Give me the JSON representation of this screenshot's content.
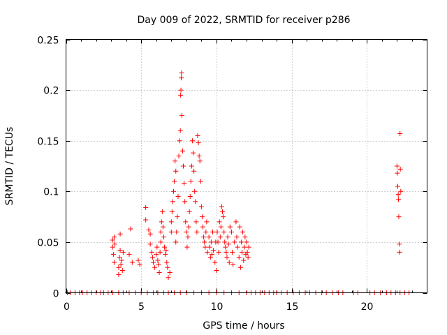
{
  "chart_data": {
    "type": "scatter",
    "title": "Day 009 of 2022, SRMTID for receiver p286",
    "xlabel": "GPS time / hours",
    "ylabel": "SRMTID / TECUs",
    "xlim": [
      0,
      24
    ],
    "ylim": [
      0,
      0.25
    ],
    "x_ticks": [
      0,
      5,
      10,
      15,
      20
    ],
    "x_tick_labels": [
      "0",
      "5",
      "10",
      "15",
      "20"
    ],
    "y_ticks": [
      0,
      0.05,
      0.1,
      0.15,
      0.2,
      0.25
    ],
    "y_tick_labels": [
      "0",
      "0.05",
      "0.1",
      "0.15",
      "0.2",
      "0.25"
    ],
    "grid": true,
    "marker": "+",
    "series": [
      {
        "name": "SRMTID",
        "color": "#ff0000",
        "points": [
          [
            0.1,
            0
          ],
          [
            0.3,
            0
          ],
          [
            0.6,
            0
          ],
          [
            0.9,
            0
          ],
          [
            1.1,
            0
          ],
          [
            1.4,
            0
          ],
          [
            1.7,
            0
          ],
          [
            2.0,
            0
          ],
          [
            2.3,
            0
          ],
          [
            2.5,
            0
          ],
          [
            2.8,
            0
          ],
          [
            3.1,
            0
          ],
          [
            3.5,
            0
          ],
          [
            3.8,
            0
          ],
          [
            4.2,
            0
          ],
          [
            4.6,
            0
          ],
          [
            5.0,
            0
          ],
          [
            5.4,
            0
          ],
          [
            5.8,
            0
          ],
          [
            6.1,
            0
          ],
          [
            6.5,
            0
          ],
          [
            6.8,
            0
          ],
          [
            7.2,
            0
          ],
          [
            7.6,
            0
          ],
          [
            8.0,
            0
          ],
          [
            8.5,
            0
          ],
          [
            9.0,
            0
          ],
          [
            9.5,
            0
          ],
          [
            10.0,
            0
          ],
          [
            10.5,
            0
          ],
          [
            11.0,
            0
          ],
          [
            11.5,
            0
          ],
          [
            12.0,
            0
          ],
          [
            12.3,
            0
          ],
          [
            12.6,
            0
          ],
          [
            12.9,
            0
          ],
          [
            13.2,
            0
          ],
          [
            13.5,
            0
          ],
          [
            13.8,
            0
          ],
          [
            14.0,
            0
          ],
          [
            14.3,
            0
          ],
          [
            14.7,
            0
          ],
          [
            15.1,
            0
          ],
          [
            15.5,
            0
          ],
          [
            15.9,
            0
          ],
          [
            16.2,
            0
          ],
          [
            16.6,
            0
          ],
          [
            17.0,
            0
          ],
          [
            17.3,
            0
          ],
          [
            17.7,
            0
          ],
          [
            18.1,
            0
          ],
          [
            18.4,
            0
          ],
          [
            19.1,
            0
          ],
          [
            19.4,
            0
          ],
          [
            20.2,
            0
          ],
          [
            20.5,
            0
          ],
          [
            20.9,
            0
          ],
          [
            21.3,
            0
          ],
          [
            21.6,
            0
          ],
          [
            21.9,
            0
          ],
          [
            22.2,
            0
          ],
          [
            22.5,
            0
          ],
          [
            22.8,
            0
          ],
          [
            3.1,
            0.052
          ],
          [
            3.1,
            0.045
          ],
          [
            3.15,
            0.038
          ],
          [
            3.2,
            0.055
          ],
          [
            3.2,
            0.03
          ],
          [
            3.25,
            0.048
          ],
          [
            3.5,
            0.025
          ],
          [
            3.5,
            0.018
          ],
          [
            3.55,
            0.035
          ],
          [
            3.6,
            0.042
          ],
          [
            3.6,
            0.058
          ],
          [
            3.65,
            0.028
          ],
          [
            3.7,
            0.032
          ],
          [
            3.75,
            0.022
          ],
          [
            3.8,
            0.04
          ],
          [
            4.2,
            0.038
          ],
          [
            4.3,
            0.063
          ],
          [
            4.4,
            0.03
          ],
          [
            4.8,
            0.032
          ],
          [
            4.9,
            0.028
          ],
          [
            5.3,
            0.072
          ],
          [
            5.3,
            0.084
          ],
          [
            5.5,
            0.062
          ],
          [
            5.6,
            0.058
          ],
          [
            5.6,
            0.048
          ],
          [
            5.7,
            0.04
          ],
          [
            5.75,
            0.035
          ],
          [
            5.8,
            0.03
          ],
          [
            5.9,
            0.025
          ],
          [
            6.0,
            0.038
          ],
          [
            6.05,
            0.045
          ],
          [
            6.1,
            0.032
          ],
          [
            6.15,
            0.028
          ],
          [
            6.2,
            0.02
          ],
          [
            6.25,
            0.04
          ],
          [
            6.3,
            0.05
          ],
          [
            6.3,
            0.06
          ],
          [
            6.35,
            0.07
          ],
          [
            6.4,
            0.08
          ],
          [
            6.45,
            0.065
          ],
          [
            6.5,
            0.055
          ],
          [
            6.55,
            0.045
          ],
          [
            6.6,
            0.038
          ],
          [
            6.65,
            0.042
          ],
          [
            6.7,
            0.03
          ],
          [
            6.75,
            0.025
          ],
          [
            6.8,
            0.015
          ],
          [
            6.9,
            0.02
          ],
          [
            7.0,
            0.06
          ],
          [
            7.0,
            0.07
          ],
          [
            7.05,
            0.08
          ],
          [
            7.1,
            0.09
          ],
          [
            7.15,
            0.1
          ],
          [
            7.2,
            0.11
          ],
          [
            7.25,
            0.13
          ],
          [
            7.3,
            0.12
          ],
          [
            7.3,
            0.05
          ],
          [
            7.35,
            0.06
          ],
          [
            7.4,
            0.075
          ],
          [
            7.45,
            0.095
          ],
          [
            7.5,
            0.135
          ],
          [
            7.55,
            0.15
          ],
          [
            7.6,
            0.16
          ],
          [
            7.62,
            0.195
          ],
          [
            7.64,
            0.2
          ],
          [
            7.66,
            0.212
          ],
          [
            7.68,
            0.217
          ],
          [
            7.7,
            0.175
          ],
          [
            7.75,
            0.14
          ],
          [
            7.8,
            0.125
          ],
          [
            7.85,
            0.108
          ],
          [
            7.9,
            0.09
          ],
          [
            7.95,
            0.07
          ],
          [
            8.0,
            0.06
          ],
          [
            8.05,
            0.045
          ],
          [
            8.1,
            0.055
          ],
          [
            8.15,
            0.065
          ],
          [
            8.2,
            0.08
          ],
          [
            8.25,
            0.095
          ],
          [
            8.3,
            0.11
          ],
          [
            8.35,
            0.125
          ],
          [
            8.4,
            0.15
          ],
          [
            8.45,
            0.138
          ],
          [
            8.5,
            0.12
          ],
          [
            8.55,
            0.1
          ],
          [
            8.6,
            0.09
          ],
          [
            8.65,
            0.07
          ],
          [
            8.7,
            0.06
          ],
          [
            8.75,
            0.155
          ],
          [
            8.8,
            0.148
          ],
          [
            8.85,
            0.135
          ],
          [
            8.9,
            0.13
          ],
          [
            8.95,
            0.11
          ],
          [
            9.0,
            0.085
          ],
          [
            9.05,
            0.075
          ],
          [
            9.1,
            0.065
          ],
          [
            9.15,
            0.055
          ],
          [
            9.2,
            0.05
          ],
          [
            9.25,
            0.045
          ],
          [
            9.3,
            0.06
          ],
          [
            9.35,
            0.07
          ],
          [
            9.4,
            0.04
          ],
          [
            9.5,
            0.055
          ],
          [
            9.55,
            0.045
          ],
          [
            9.6,
            0.035
          ],
          [
            9.65,
            0.05
          ],
          [
            9.7,
            0.038
          ],
          [
            9.75,
            0.06
          ],
          [
            9.8,
            0.042
          ],
          [
            9.9,
            0.03
          ],
          [
            9.95,
            0.05
          ],
          [
            10.0,
            0.022
          ],
          [
            10.05,
            0.06
          ],
          [
            10.1,
            0.05
          ],
          [
            10.15,
            0.04
          ],
          [
            10.2,
            0.07
          ],
          [
            10.25,
            0.055
          ],
          [
            10.3,
            0.065
          ],
          [
            10.35,
            0.085
          ],
          [
            10.4,
            0.08
          ],
          [
            10.45,
            0.075
          ],
          [
            10.5,
            0.06
          ],
          [
            10.55,
            0.05
          ],
          [
            10.6,
            0.045
          ],
          [
            10.65,
            0.04
          ],
          [
            10.7,
            0.035
          ],
          [
            10.75,
            0.055
          ],
          [
            10.8,
            0.048
          ],
          [
            10.85,
            0.03
          ],
          [
            10.9,
            0.065
          ],
          [
            11.0,
            0.06
          ],
          [
            11.05,
            0.04
          ],
          [
            11.1,
            0.028
          ],
          [
            11.2,
            0.05
          ],
          [
            11.3,
            0.07
          ],
          [
            11.35,
            0.055
          ],
          [
            11.4,
            0.045
          ],
          [
            11.5,
            0.035
          ],
          [
            11.55,
            0.065
          ],
          [
            11.6,
            0.025
          ],
          [
            11.65,
            0.05
          ],
          [
            11.7,
            0.04
          ],
          [
            11.75,
            0.06
          ],
          [
            11.8,
            0.032
          ],
          [
            11.85,
            0.045
          ],
          [
            11.9,
            0.055
          ],
          [
            11.95,
            0.038
          ],
          [
            12.0,
            0.05
          ],
          [
            12.05,
            0.04
          ],
          [
            12.1,
            0.035
          ],
          [
            12.15,
            0.045
          ],
          [
            22.0,
            0.125
          ],
          [
            22.02,
            0.118
          ],
          [
            22.05,
            0.105
          ],
          [
            22.08,
            0.097
          ],
          [
            22.1,
            0.092
          ],
          [
            22.12,
            0.075
          ],
          [
            22.15,
            0.048
          ],
          [
            22.17,
            0.04
          ],
          [
            22.2,
            0.157
          ],
          [
            22.22,
            0.122
          ],
          [
            22.25,
            0.1
          ]
        ]
      }
    ]
  }
}
